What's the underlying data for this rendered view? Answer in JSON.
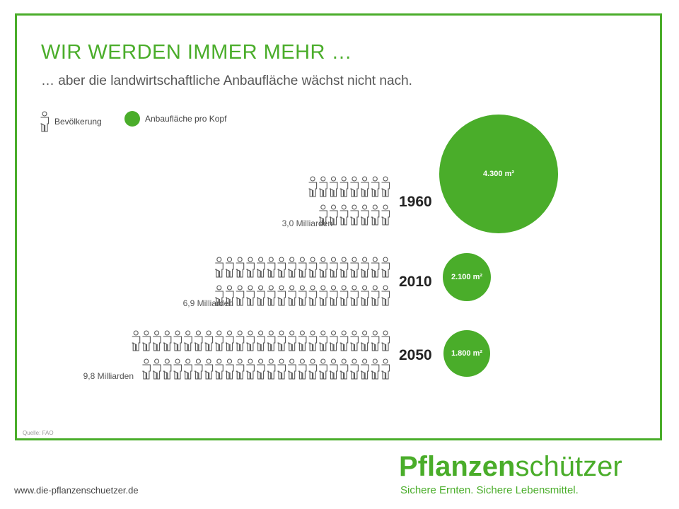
{
  "header": {
    "title": "WIR WERDEN IMMER MEHR …",
    "subtitle": "… aber die landwirtschaftliche Anbaufläche wächst nicht nach."
  },
  "legend": {
    "population_label": "Bevölkerung",
    "area_label": "Anbaufläche pro Kopf",
    "population_icon": "person-icon",
    "area_color": "#4aad2a"
  },
  "rows": [
    {
      "year": "1960",
      "population_label": "3,0 Milliarden",
      "area_label": "4.300 m²"
    },
    {
      "year": "2010",
      "population_label": "6,9 Milliarden",
      "area_label": "2.100 m²"
    },
    {
      "year": "2050",
      "population_label": "9,8 Milliarden",
      "area_label": "1.800 m²"
    }
  ],
  "chart_data": {
    "type": "pictogram",
    "title": "WIR WERDEN IMMER MEHR …",
    "subtitle": "… aber die landwirtschaftliche Anbaufläche wächst nicht nach.",
    "categories": [
      "1960",
      "2010",
      "2050"
    ],
    "series": [
      {
        "name": "Bevölkerung",
        "unit": "Milliarden",
        "values": [
          3.0,
          6.9,
          9.8
        ]
      },
      {
        "name": "Anbaufläche pro Kopf",
        "unit": "m²",
        "values": [
          4300,
          2100,
          1800
        ]
      }
    ]
  },
  "footer": {
    "source": "Quelle: FAO",
    "url": "www.die-pflanzenschuetzer.de",
    "brand_part1": "Pflanzen",
    "brand_part2": "schützer",
    "tagline": "Sichere Ernten. Sichere Lebensmittel."
  },
  "colors": {
    "accent": "#4aad2a",
    "text": "#555555"
  }
}
